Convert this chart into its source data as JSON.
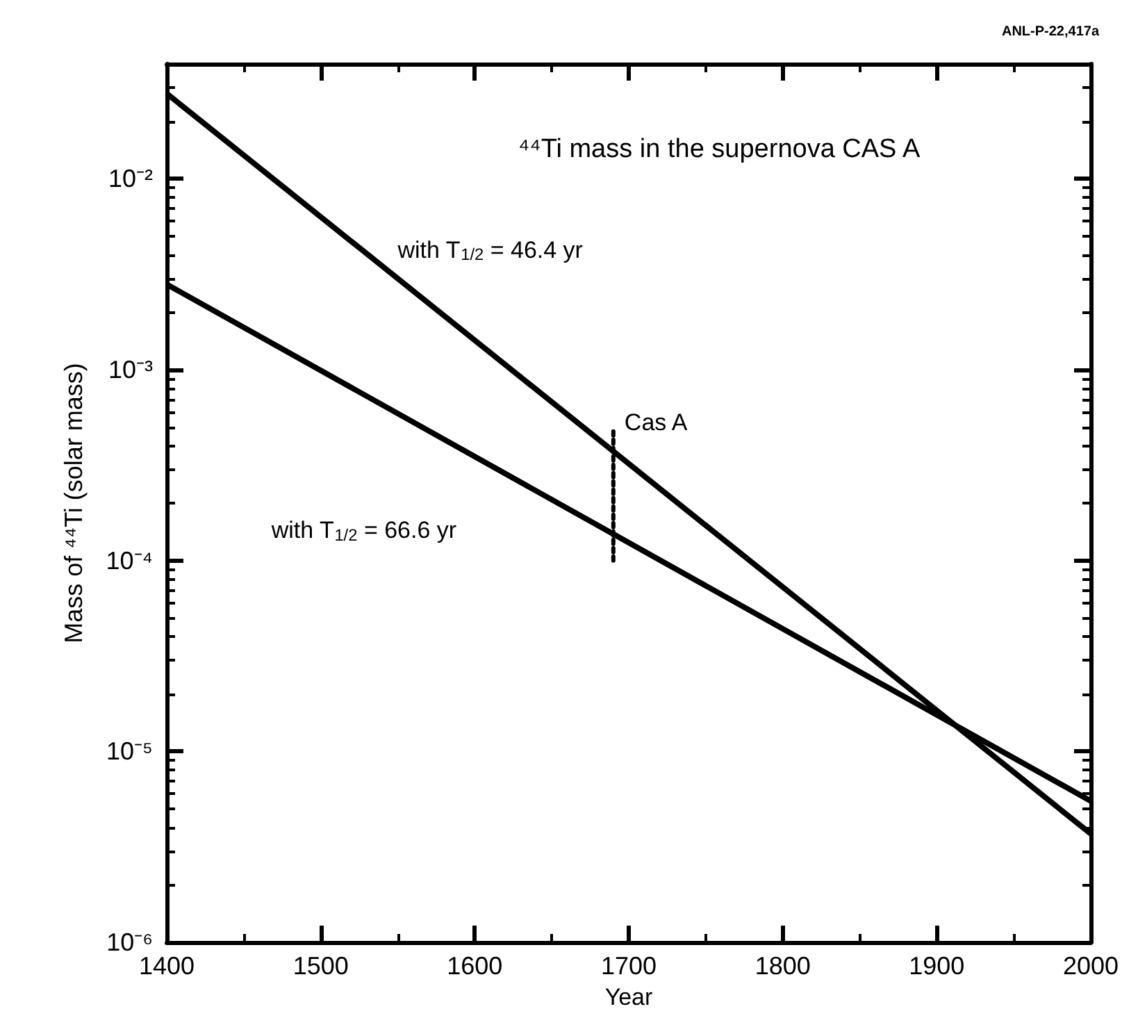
{
  "chart_data": {
    "type": "line",
    "title": "⁴⁴Ti mass in the supernova CAS A",
    "xlabel": "Year",
    "ylabel": "Mass of ⁴⁴Ti (solar mass)",
    "series": [
      {
        "name": "with T$_{1/2}$ = 46.4 yr",
        "color": "#000000",
        "x": [
          1400,
          2000
        ],
        "values": [
          0.028,
          3.7e-06
        ]
      },
      {
        "name": "with T$_{1/2}$ = 66.6 yr",
        "color": "#000000",
        "x": [
          1400,
          2000
        ],
        "values": [
          0.0028,
          5.5e-06
        ]
      },
      {
        "color": "#000000",
        "x": [
          1690,
          1690
        ],
        "values": [
          0.0001,
          0.0005
        ],
        "line_style": "dotted"
      }
    ],
    "annotations": [
      {
        "text": "Cas A",
        "x": 1690,
        "y": 0.0005
      },
      "ANL-P-22,417a"
    ],
    "log": "y",
    "xlim": [
      1400,
      2000
    ],
    "xticks": [
      1400,
      1500,
      1600,
      1700,
      1800,
      1900,
      2000
    ],
    "ylim": [
      1e-06,
      0.04
    ],
    "yticks": [
      {
        "value": 1e-06,
        "label": "10⁻⁶"
      },
      {
        "value": 1e-05,
        "label": "10⁻⁵"
      },
      {
        "value": 0.0001,
        "label": "10⁻⁴"
      },
      {
        "value": 0.001,
        "label": "10⁻³"
      },
      {
        "value": 0.01,
        "label": "10⁻²"
      }
    ],
    "line_style": "solid",
    "marker": "none",
    "grid": false,
    "legend": false
  }
}
